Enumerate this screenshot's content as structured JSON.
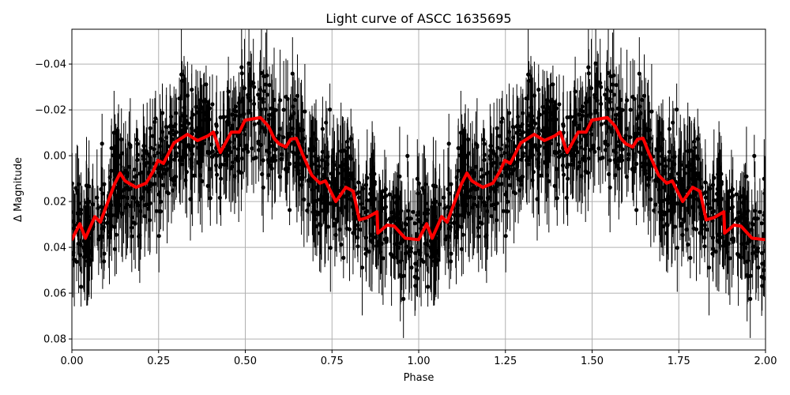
{
  "chart_data": {
    "type": "scatter",
    "title": "Light curve of ASCC 1635695",
    "xlabel": "Phase",
    "ylabel": "Δ Magnitude",
    "xlim": [
      0.0,
      2.0
    ],
    "ylim": [
      0.0848,
      -0.0552
    ],
    "y_inverted": true,
    "grid": true,
    "legend": null,
    "xticks": [
      0.0,
      0.25,
      0.5,
      0.75,
      1.0,
      1.25,
      1.5,
      1.75,
      2.0
    ],
    "xtick_labels": [
      "0.00",
      "0.25",
      "0.50",
      "0.75",
      "1.00",
      "1.25",
      "1.50",
      "1.75",
      "2.00"
    ],
    "yticks": [
      -0.04,
      -0.02,
      0.0,
      0.02,
      0.04,
      0.06,
      0.08
    ],
    "ytick_labels": [
      "−0.04",
      "−0.02",
      "0.00",
      "0.02",
      "0.04",
      "0.06",
      "0.08"
    ],
    "series": [
      {
        "name": "observations",
        "kind": "errorbar-scatter",
        "color": "#000000",
        "description": "Dense cloud of black points with vertical error bars, phase-folded and repeated over two cycles; scatter roughly ±0.03 mag around the smoothed curve",
        "approx_count_per_cycle": 900,
        "typical_errorbar": 0.012
      },
      {
        "name": "smoothed model",
        "kind": "line",
        "color": "#ff0000",
        "linewidth": 4,
        "repeats_every": 1.0,
        "x": [
          0.0,
          0.023,
          0.039,
          0.066,
          0.082,
          0.123,
          0.139,
          0.153,
          0.185,
          0.214,
          0.235,
          0.248,
          0.264,
          0.294,
          0.333,
          0.362,
          0.392,
          0.408,
          0.428,
          0.46,
          0.483,
          0.499,
          0.526,
          0.544,
          0.567,
          0.583,
          0.597,
          0.617,
          0.631,
          0.647,
          0.665,
          0.692,
          0.715,
          0.731,
          0.761,
          0.79,
          0.811,
          0.829,
          0.852,
          0.88,
          0.882,
          0.909,
          0.929,
          0.961,
          0.995,
          1.0
        ],
        "y": [
          0.0366,
          0.0297,
          0.036,
          0.0266,
          0.029,
          0.0124,
          0.0076,
          0.011,
          0.0138,
          0.012,
          0.0066,
          0.002,
          0.0034,
          -0.0055,
          -0.0093,
          -0.0066,
          -0.0086,
          -0.0103,
          -0.0014,
          -0.0103,
          -0.0103,
          -0.0155,
          -0.0162,
          -0.0166,
          -0.0128,
          -0.0076,
          -0.0052,
          -0.0038,
          -0.0072,
          -0.0076,
          -0.0007,
          0.0086,
          0.012,
          0.011,
          0.02,
          0.0138,
          0.0155,
          0.028,
          0.027,
          0.0245,
          0.0338,
          0.0303,
          0.0307,
          0.036,
          0.0366,
          0.0366
        ]
      }
    ]
  },
  "colors": {
    "data": "#000000",
    "model": "#ff0000",
    "grid": "#b0b0b0",
    "axes": "#000000",
    "background": "#ffffff"
  }
}
